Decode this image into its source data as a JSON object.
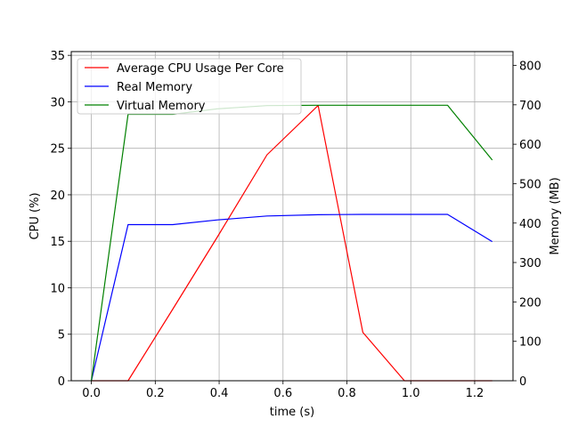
{
  "chart_data": {
    "type": "line",
    "xlabel": "time (s)",
    "ylabel_left": "CPU (%)",
    "ylabel_right": "Memory (MB)",
    "xlim": [
      -0.063,
      1.32
    ],
    "ylim_left": [
      0,
      35.4
    ],
    "ylim_right": [
      0,
      835
    ],
    "x_ticks": [
      0.0,
      0.2,
      0.4,
      0.6,
      0.8,
      1.0,
      1.2
    ],
    "x_tick_labels": [
      "0.0",
      "0.2",
      "0.4",
      "0.6",
      "0.8",
      "1.0",
      "1.2"
    ],
    "y_left_ticks": [
      0,
      5,
      10,
      15,
      20,
      25,
      30,
      35
    ],
    "y_right_ticks": [
      0,
      100,
      200,
      300,
      400,
      500,
      600,
      700,
      800
    ],
    "grid": true,
    "legend_position": "top-left",
    "series": [
      {
        "name": "Average CPU Usage Per Core",
        "color": "#ff0000",
        "axis": "left",
        "x": [
          0.0,
          0.115,
          0.255,
          0.395,
          0.55,
          0.71,
          0.85,
          0.98,
          1.115,
          1.255
        ],
        "y": [
          0.0,
          0.0,
          7.7,
          15.5,
          24.3,
          29.6,
          5.2,
          0.0,
          0.0,
          0.0
        ]
      },
      {
        "name": "Real Memory",
        "color": "#0000ff",
        "axis": "right",
        "x": [
          0.0,
          0.115,
          0.255,
          0.395,
          0.55,
          0.71,
          0.85,
          0.98,
          1.115,
          1.255
        ],
        "y": [
          0,
          396,
          396,
          408,
          418,
          421,
          422,
          422,
          422,
          353
        ]
      },
      {
        "name": "Virtual Memory",
        "color": "#008000",
        "axis": "right",
        "x": [
          0.0,
          0.115,
          0.255,
          0.395,
          0.55,
          0.71,
          0.85,
          0.98,
          1.115,
          1.255
        ],
        "y": [
          0,
          676,
          676,
          690,
          698,
          699,
          699,
          699,
          699,
          560
        ]
      }
    ]
  }
}
